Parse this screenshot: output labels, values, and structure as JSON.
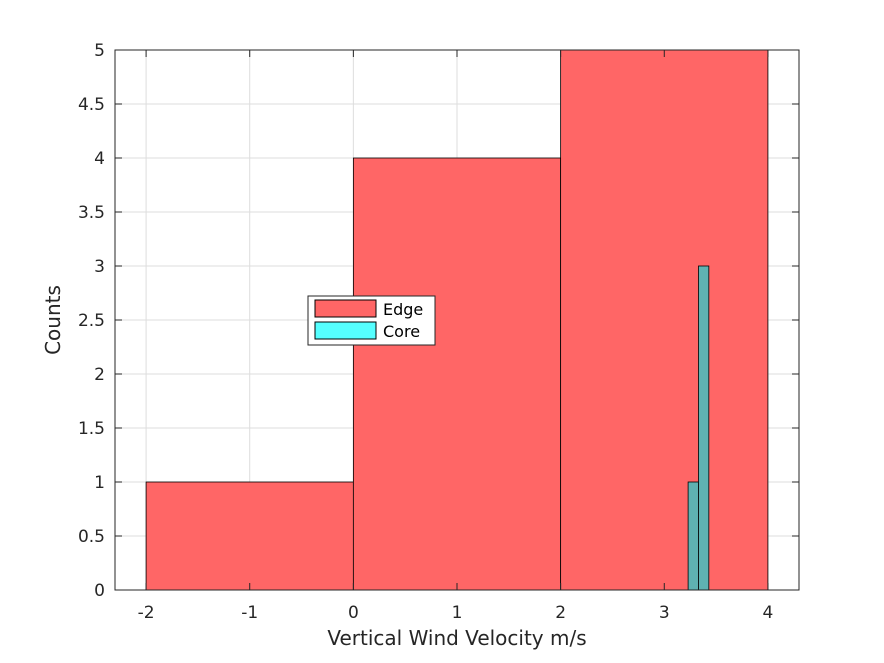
{
  "chart_data": {
    "type": "bar",
    "title": "",
    "xlabel": "Vertical Wind Velocity m/s",
    "ylabel": "Counts",
    "xlim": [
      -2.3,
      4.3
    ],
    "ylim": [
      0,
      5
    ],
    "x_ticks": [
      -2,
      -1,
      0,
      1,
      2,
      3,
      4
    ],
    "x_tick_labels": [
      "-2",
      "-1",
      "0",
      "1",
      "2",
      "3",
      "4"
    ],
    "y_ticks": [
      0,
      0.5,
      1,
      1.5,
      2,
      2.5,
      3,
      3.5,
      4,
      4.5,
      5
    ],
    "y_tick_labels": [
      "0",
      "0.5",
      "1",
      "1.5",
      "2",
      "2.5",
      "3",
      "3.5",
      "4",
      "4.5",
      "5"
    ],
    "grid": true,
    "legend_position": "center-left",
    "series": [
      {
        "name": "Edge",
        "color": "#FF6666",
        "bins": [
          {
            "x0": -2,
            "x1": 0,
            "count": 1
          },
          {
            "x0": 0,
            "x1": 2,
            "count": 4
          },
          {
            "x0": 2,
            "x1": 4,
            "count": 5
          }
        ]
      },
      {
        "name": "Core",
        "color": "#55FFFF",
        "overlap_color": "#5FB2B2",
        "bins": [
          {
            "x0": 3.23,
            "x1": 3.33,
            "count": 1
          },
          {
            "x0": 3.33,
            "x1": 3.43,
            "count": 3
          }
        ]
      }
    ]
  }
}
